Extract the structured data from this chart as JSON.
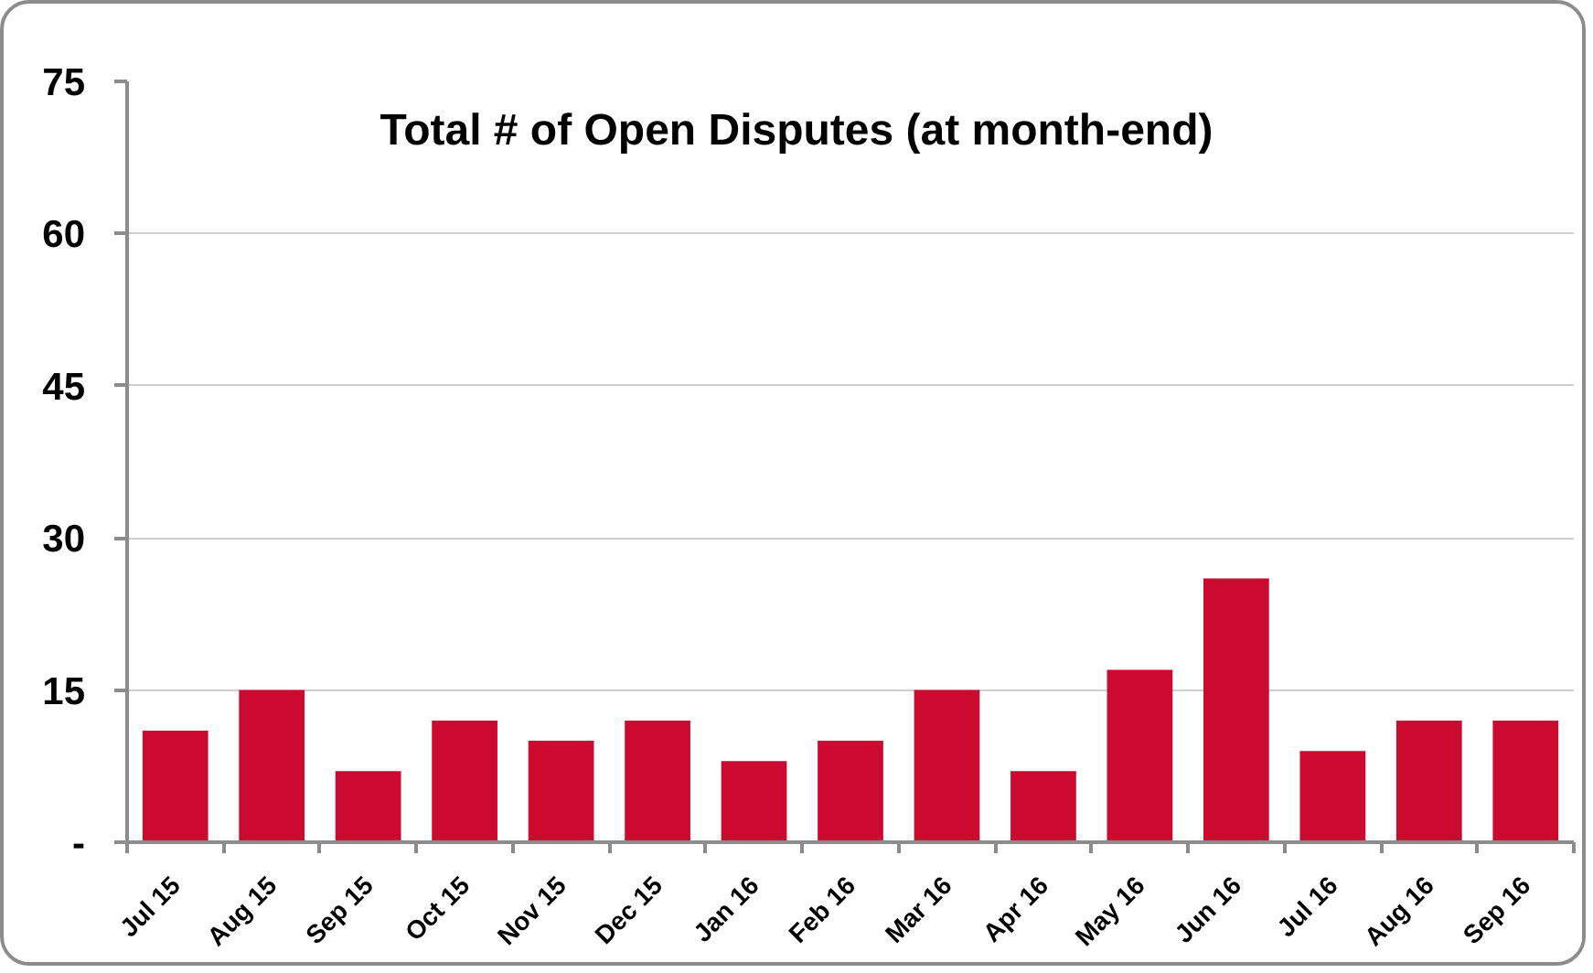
{
  "chart_data": {
    "type": "bar",
    "title": "Total # of Open Disputes (at month-end)",
    "categories": [
      "Jul 15",
      "Aug 15",
      "Sep 15",
      "Oct 15",
      "Nov 15",
      "Dec 15",
      "Jan 16",
      "Feb 16",
      "Mar 16",
      "Apr 16",
      "May 16",
      "Jun 16",
      "Jul 16",
      "Aug 16",
      "Sep 16"
    ],
    "values": [
      11,
      15,
      7,
      12,
      10,
      12,
      8,
      10,
      15,
      7,
      17,
      26,
      9,
      12,
      12
    ],
    "color": "#cc0a30",
    "ylim": [
      0,
      75
    ],
    "yticks": [
      {
        "value": 0,
        "label": "-"
      },
      15,
      30,
      45,
      60,
      75
    ],
    "grid": "y"
  }
}
